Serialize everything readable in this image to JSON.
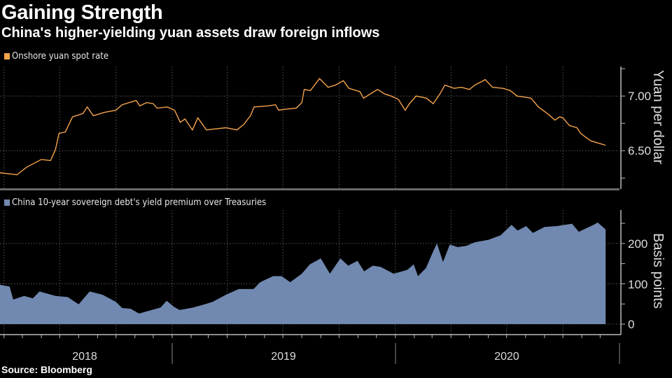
{
  "header": {
    "title": "Gaining Strength",
    "subtitle": "China's higher-yielding yuan assets draw foreign inflows"
  },
  "footer": {
    "source": "Source: Bloomberg"
  },
  "colors": {
    "background": "#000000",
    "yuan_line": "#f5a34c",
    "premium_area": "#7189b0",
    "grid": "#555555"
  },
  "chart_data": [
    {
      "type": "line",
      "legend": "Onshore yuan spot rate",
      "ylabel": "Yuan per dollar",
      "yticks": [
        "6.50",
        "7.00"
      ],
      "ylim": [
        6.15,
        7.27
      ],
      "xlim": [
        "2018-03-24",
        "2021-01-01"
      ],
      "grid": true,
      "series": [
        {
          "name": "Onshore yuan spot rate",
          "x": [
            "2018-03-24",
            "2018-04-22",
            "2018-05-08",
            "2018-06-01",
            "2018-06-16",
            "2018-06-24",
            "2018-06-30",
            "2018-07-10",
            "2018-07-22",
            "2018-08-08",
            "2018-08-15",
            "2018-08-25",
            "2018-09-12",
            "2018-10-01",
            "2018-10-11",
            "2018-11-03",
            "2018-11-09",
            "2018-11-20",
            "2018-12-01",
            "2018-12-07",
            "2018-12-24",
            "2019-01-05",
            "2019-01-14",
            "2019-01-22",
            "2019-02-03",
            "2019-02-12",
            "2019-02-26",
            "2019-03-13",
            "2019-03-30",
            "2019-04-17",
            "2019-04-28",
            "2019-05-09",
            "2019-05-15",
            "2019-06-07",
            "2019-06-19",
            "2019-06-24",
            "2019-07-06",
            "2019-07-23",
            "2019-08-01",
            "2019-08-05",
            "2019-08-15",
            "2019-08-30",
            "2019-09-13",
            "2019-09-25",
            "2019-10-08",
            "2019-10-17",
            "2019-11-04",
            "2019-11-10",
            "2019-11-21",
            "2019-12-03",
            "2019-12-14",
            "2019-12-25",
            "2020-01-06",
            "2020-01-17",
            "2020-01-24",
            "2020-02-04",
            "2020-02-21",
            "2020-03-03",
            "2020-03-14",
            "2020-03-22",
            "2020-04-06",
            "2020-04-18",
            "2020-05-01",
            "2020-05-10",
            "2020-05-27",
            "2020-06-08",
            "2020-06-25",
            "2020-07-07",
            "2020-07-18",
            "2020-07-30",
            "2020-08-10",
            "2020-08-22",
            "2020-09-08",
            "2020-09-18",
            "2020-09-26",
            "2020-10-01",
            "2020-10-12",
            "2020-10-24",
            "2020-10-30",
            "2020-11-08",
            "2020-11-16",
            "2020-11-28",
            "2020-12-10"
          ],
          "y": [
            6.3,
            6.28,
            6.35,
            6.42,
            6.41,
            6.51,
            6.66,
            6.67,
            6.81,
            6.84,
            6.9,
            6.82,
            6.85,
            6.87,
            6.92,
            6.96,
            6.91,
            6.94,
            6.93,
            6.89,
            6.9,
            6.87,
            6.76,
            6.79,
            6.69,
            6.8,
            6.69,
            6.7,
            6.71,
            6.69,
            6.74,
            6.82,
            6.9,
            6.91,
            6.92,
            6.87,
            6.88,
            6.89,
            6.94,
            7.06,
            7.05,
            7.16,
            7.08,
            7.1,
            7.14,
            7.07,
            7.04,
            6.98,
            7.02,
            7.06,
            7.02,
            7.0,
            6.97,
            6.87,
            6.93,
            7.0,
            6.98,
            6.93,
            7.02,
            7.1,
            7.07,
            7.08,
            7.06,
            7.1,
            7.15,
            7.08,
            7.07,
            7.05,
            7.0,
            6.99,
            6.98,
            6.9,
            6.83,
            6.78,
            6.81,
            6.8,
            6.73,
            6.71,
            6.66,
            6.62,
            6.59,
            6.57,
            6.55
          ]
        }
      ]
    },
    {
      "type": "area",
      "legend": "China 10-year sovereign debt's yield premium over Treasuries",
      "ylabel": "Basis points",
      "yticks": [
        "0",
        "100",
        "200"
      ],
      "ylim": [
        -26,
        283
      ],
      "xlim": [
        "2018-03-24",
        "2021-01-01"
      ],
      "xtick_labels": [
        "2018",
        "2019",
        "2020"
      ],
      "grid": true,
      "series": [
        {
          "name": "China 10-year sovereign debt's yield premium over Treasuries",
          "x": [
            "2018-03-24",
            "2018-04-10",
            "2018-04-16",
            "2018-05-04",
            "2018-05-18",
            "2018-05-29",
            "2018-06-24",
            "2018-07-14",
            "2018-08-01",
            "2018-08-19",
            "2018-09-09",
            "2018-10-01",
            "2018-10-11",
            "2018-10-25",
            "2018-11-08",
            "2018-11-21",
            "2018-12-13",
            "2018-12-23",
            "2019-01-03",
            "2019-01-13",
            "2019-02-04",
            "2019-02-23",
            "2019-03-08",
            "2019-03-30",
            "2019-04-20",
            "2019-05-14",
            "2019-05-25",
            "2019-06-15",
            "2019-06-29",
            "2019-07-13",
            "2019-08-01",
            "2019-08-14",
            "2019-09-01",
            "2019-09-16",
            "2019-10-03",
            "2019-10-16",
            "2019-10-31",
            "2019-11-11",
            "2019-11-25",
            "2019-12-08",
            "2019-12-29",
            "2020-01-20",
            "2020-01-31",
            "2020-02-07",
            "2020-02-20",
            "2020-03-01",
            "2020-03-09",
            "2020-03-19",
            "2020-03-30",
            "2020-04-12",
            "2020-04-26",
            "2020-05-10",
            "2020-06-01",
            "2020-06-21",
            "2020-07-09",
            "2020-07-19",
            "2020-08-02",
            "2020-08-13",
            "2020-09-01",
            "2020-09-21",
            "2020-10-16",
            "2020-10-27",
            "2020-11-20",
            "2020-11-27",
            "2020-12-10"
          ],
          "y": [
            98,
            93,
            61,
            70,
            64,
            81,
            70,
            67,
            49,
            81,
            73,
            55,
            40,
            38,
            26,
            32,
            41,
            58,
            44,
            35,
            41,
            49,
            55,
            73,
            87,
            87,
            104,
            119,
            119,
            104,
            125,
            148,
            163,
            125,
            163,
            145,
            157,
            131,
            145,
            142,
            125,
            134,
            148,
            119,
            139,
            174,
            200,
            154,
            197,
            191,
            194,
            203,
            209,
            220,
            246,
            232,
            243,
            226,
            241,
            243,
            249,
            229,
            246,
            252,
            235
          ]
        }
      ]
    }
  ]
}
